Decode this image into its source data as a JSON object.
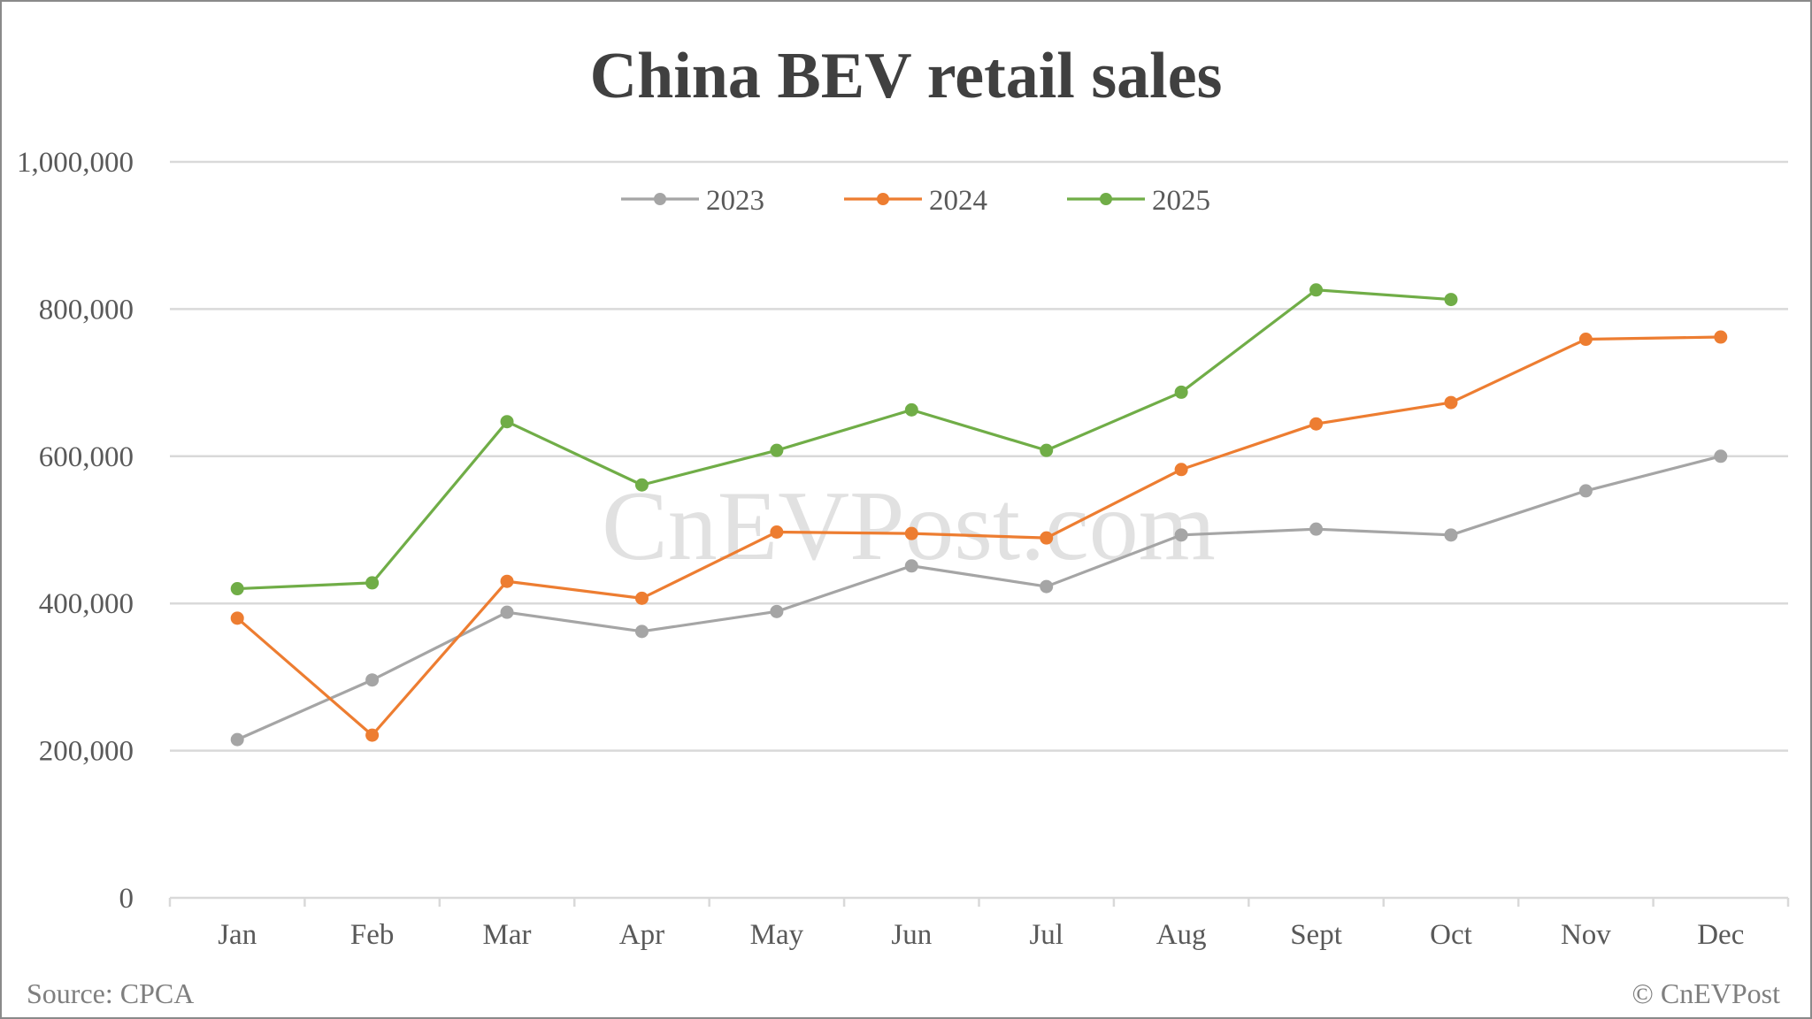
{
  "chart_data": {
    "type": "line",
    "title": "China BEV retail sales",
    "xlabel": "",
    "ylabel": "",
    "categories": [
      "Jan",
      "Feb",
      "Mar",
      "Apr",
      "May",
      "Jun",
      "Jul",
      "Aug",
      "Sept",
      "Oct",
      "Nov",
      "Dec"
    ],
    "series": [
      {
        "name": "2023",
        "color": "#a5a5a5",
        "values": [
          215000,
          296000,
          388000,
          362000,
          389000,
          451000,
          423000,
          493000,
          501000,
          493000,
          553000,
          600000
        ]
      },
      {
        "name": "2024",
        "color": "#ed7d31",
        "values": [
          380000,
          221000,
          430000,
          407000,
          497000,
          495000,
          489000,
          582000,
          644000,
          673000,
          759000,
          762000
        ]
      },
      {
        "name": "2025",
        "color": "#70ad47",
        "values": [
          420000,
          428000,
          647000,
          561000,
          608000,
          663000,
          608000,
          687000,
          826000,
          813000,
          null,
          null
        ]
      }
    ],
    "ylim": [
      0,
      1000000
    ],
    "yticks": [
      0,
      200000,
      400000,
      600000,
      800000,
      1000000
    ],
    "ytick_labels": [
      "0",
      "200,000",
      "400,000",
      "600,000",
      "800,000",
      "1,000,000"
    ],
    "grid": true,
    "legend_position": "top",
    "watermark": "CnEVPost.com"
  },
  "footer": {
    "source": "Source: CPCA",
    "copyright": "© CnEVPost"
  }
}
